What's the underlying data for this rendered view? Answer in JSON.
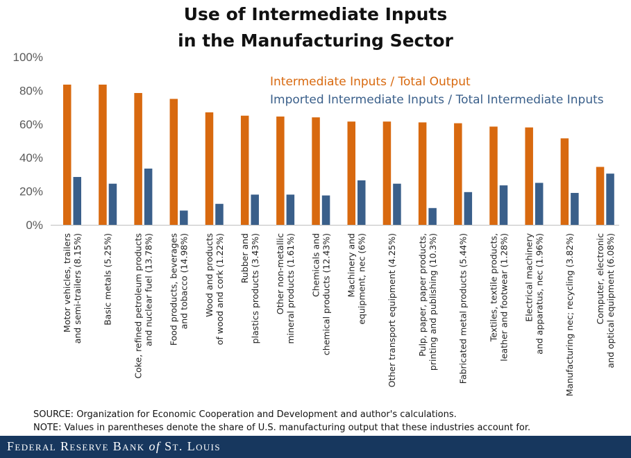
{
  "chart_data": {
    "type": "bar",
    "title": "Use of Intermediate Inputs",
    "subtitle": "in the Manufacturing Sector",
    "ylim": [
      0,
      100
    ],
    "yticks": [
      0,
      20,
      40,
      60,
      80,
      100
    ],
    "ytick_labels": [
      "0%",
      "20%",
      "40%",
      "60%",
      "80%",
      "100%"
    ],
    "legend_position": "top-right",
    "categories": [
      [
        "Motor vehicles, trailers",
        "and semi-trailers (8.15%)"
      ],
      [
        "Basic metals (5.25%)"
      ],
      [
        "Coke, refined petroleum products",
        "and nuclear fuel (13.78%)"
      ],
      [
        "Food products, beverages",
        "and tobacco (14.98%)"
      ],
      [
        "Wood and products",
        "of wood and cork (1.22%)"
      ],
      [
        "Rubber and",
        "plastics products (3.43%)"
      ],
      [
        "Other non-metallic",
        "mineral products (1.61%)"
      ],
      [
        "Chemicals and",
        "chemical products (12.43%)"
      ],
      [
        "Machinery and",
        "equipment, nec (6%)"
      ],
      [
        "Other transport equipment (4.25%)"
      ],
      [
        "Pulp, paper, paper products,",
        "printing and publishing (10.3%)"
      ],
      [
        "Fabricated metal products (5.44%)"
      ],
      [
        "Textiles, textile products,",
        "leather and footwear (1.28%)"
      ],
      [
        "Electrical machinery",
        "and apparatus, nec (1.96%)"
      ],
      [
        "Manufacturing nec; recycling (3.82%)"
      ],
      [
        "Computer, electronic",
        "and optical equipment (6.08%)"
      ]
    ],
    "series": [
      {
        "name": "Intermediate Inputs / Total Output",
        "color": "#d8690f",
        "values": [
          83.5,
          83.5,
          78.5,
          75,
          67,
          65,
          64.5,
          64,
          61.5,
          61.5,
          61,
          60.5,
          58.5,
          58,
          51.5,
          34.5
        ]
      },
      {
        "name": "Imported Intermediate Inputs / Total Intermediate Inputs",
        "color": "#3a5f8a",
        "values": [
          28.5,
          24.5,
          33.5,
          8.5,
          12.5,
          18,
          18,
          17.5,
          26.5,
          24.5,
          10,
          19.5,
          23.5,
          25,
          19,
          30.5
        ]
      }
    ]
  },
  "notes": {
    "source": "SOURCE: Organization for Economic Cooperation and Development and author's calculations.",
    "note": "NOTE: Values in parentheses denote the share of U.S. manufacturing output that these industries account for."
  },
  "footer": {
    "text": "Federal Reserve Bank of St. Louis"
  }
}
